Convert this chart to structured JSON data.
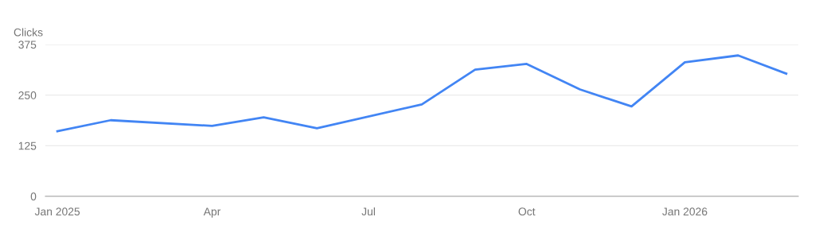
{
  "chart_data": {
    "type": "line",
    "ylabel": "Clicks",
    "x": [
      "2025-01",
      "2025-02",
      "2025-04",
      "2025-05",
      "2025-06",
      "2025-08",
      "2025-09",
      "2025-10",
      "2025-11",
      "2025-12",
      "2026-01",
      "2026-02",
      "2026-03"
    ],
    "series": [
      {
        "color": "#4285f4",
        "values": [
          161,
          188,
          174,
          195,
          168,
          227,
          313,
          327,
          264,
          222,
          331,
          348,
          303
        ]
      }
    ],
    "xlim": [
      "2024-12-25",
      "2026-03-08"
    ],
    "xticks": [
      {
        "value": "2025-01",
        "label": "Jan 2025"
      },
      {
        "value": "2025-04",
        "label": "Apr"
      },
      {
        "value": "2025-07",
        "label": "Jul"
      },
      {
        "value": "2025-10",
        "label": "Oct"
      },
      {
        "value": "2026-01",
        "label": "Jan 2026"
      }
    ],
    "ylim": [
      0,
      375
    ],
    "yticks": [
      0,
      125,
      250,
      375
    ],
    "grid": "y",
    "marker": "none",
    "line_style": "solid"
  }
}
